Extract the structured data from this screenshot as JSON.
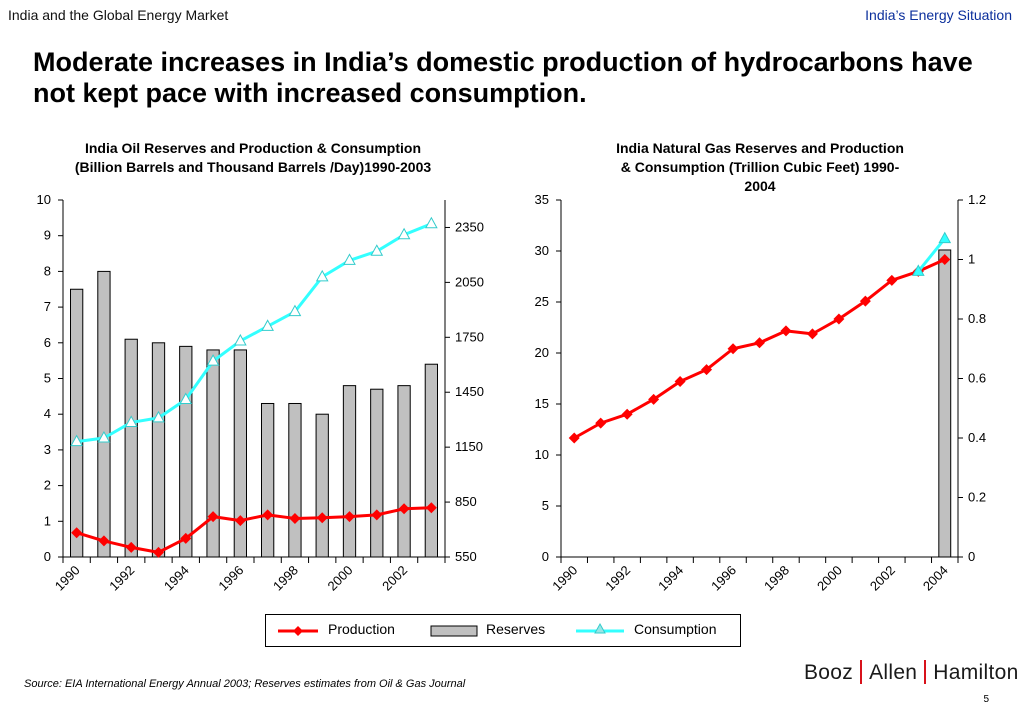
{
  "header": {
    "left": "India and the Global Energy Market",
    "right": "India’s Energy Situation"
  },
  "slide_title": "Moderate increases in India’s domestic production of hydrocarbons have not kept pace with increased consumption.",
  "colors": {
    "production": "#ff0000",
    "reserves": "#c0c0c0",
    "consumption": "#33ffff",
    "logo_bar": "#d8121b"
  },
  "chart_data": [
    {
      "type": "bar+line",
      "title": "India Oil Reserves and Production & Consumption (Billion Barrels and Thousand Barrels /Day)1990-2003",
      "x": [
        1990,
        1991,
        1992,
        1993,
        1994,
        1995,
        1996,
        1997,
        1998,
        1999,
        2000,
        2001,
        2002,
        2003
      ],
      "x_tick_labels": [
        "1990",
        "1992",
        "1994",
        "1996",
        "1998",
        "2000",
        "2002"
      ],
      "left_axis": {
        "ylim": [
          0,
          10
        ],
        "ticks": [
          "0",
          "1",
          "2",
          "3",
          "4",
          "5",
          "6",
          "7",
          "8",
          "9",
          "10"
        ]
      },
      "right_axis": {
        "ylim": [
          550,
          2500
        ],
        "ticks": [
          "550",
          "850",
          "1150",
          "1450",
          "1750",
          "2050",
          "2350"
        ]
      },
      "series": [
        {
          "name": "Reserves",
          "type": "bar",
          "axis": "left",
          "values": [
            7.5,
            8.0,
            6.1,
            6.0,
            5.9,
            5.8,
            5.8,
            4.3,
            4.3,
            4.0,
            4.8,
            4.7,
            4.8,
            5.4
          ]
        },
        {
          "name": "Production",
          "type": "line",
          "axis": "left",
          "values": [
            0.68,
            0.45,
            0.27,
            0.13,
            0.52,
            1.13,
            1.02,
            1.18,
            1.08,
            1.1,
            1.13,
            1.18,
            1.35,
            1.38
          ]
        },
        {
          "name": "Consumption",
          "type": "line",
          "axis": "right",
          "values": [
            1180,
            1200,
            1285,
            1310,
            1410,
            1620,
            1730,
            1810,
            1890,
            2080,
            2170,
            2220,
            2310,
            2370
          ]
        }
      ]
    },
    {
      "type": "bar+line",
      "title": "India Natural Gas Reserves and Production & Consumption (Trillion Cubic Feet) 1990-2004",
      "x": [
        1990,
        1991,
        1992,
        1993,
        1994,
        1995,
        1996,
        1997,
        1998,
        1999,
        2000,
        2001,
        2002,
        2003,
        2004
      ],
      "x_tick_labels": [
        "1990",
        "1992",
        "1994",
        "1996",
        "1998",
        "2000",
        "2002",
        "2004"
      ],
      "left_axis": {
        "ylim": [
          0,
          35
        ],
        "ticks": [
          "0",
          "5",
          "10",
          "15",
          "20",
          "25",
          "30",
          "35"
        ]
      },
      "right_axis": {
        "ylim": [
          0,
          1.2
        ],
        "ticks": [
          "0",
          "0.2",
          "0.4",
          "0.6",
          "0.8",
          "1",
          "1.2"
        ]
      },
      "series": [
        {
          "name": "Reserves",
          "type": "bar",
          "axis": "left",
          "values": [
            null,
            null,
            null,
            null,
            null,
            null,
            null,
            null,
            null,
            null,
            null,
            null,
            null,
            null,
            30.1
          ]
        },
        {
          "name": "Production",
          "type": "line",
          "axis": "right",
          "values": [
            0.4,
            0.45,
            0.48,
            0.53,
            0.59,
            0.63,
            0.7,
            0.72,
            0.76,
            0.75,
            0.8,
            0.86,
            0.93,
            0.96,
            1.0
          ]
        },
        {
          "name": "Consumption",
          "type": "line",
          "axis": "right",
          "values": [
            null,
            null,
            null,
            null,
            null,
            null,
            null,
            null,
            null,
            null,
            null,
            null,
            null,
            0.96,
            1.07
          ]
        }
      ]
    }
  ],
  "legend": {
    "production": "Production",
    "reserves": "Reserves",
    "consumption": "Consumption"
  },
  "source": "Source:  EIA International Energy Annual 2003; Reserves estimates from Oil & Gas Journal",
  "logo": {
    "part1": "Booz",
    "part2": "Allen",
    "part3": "Hamilton"
  },
  "page_number": "5"
}
